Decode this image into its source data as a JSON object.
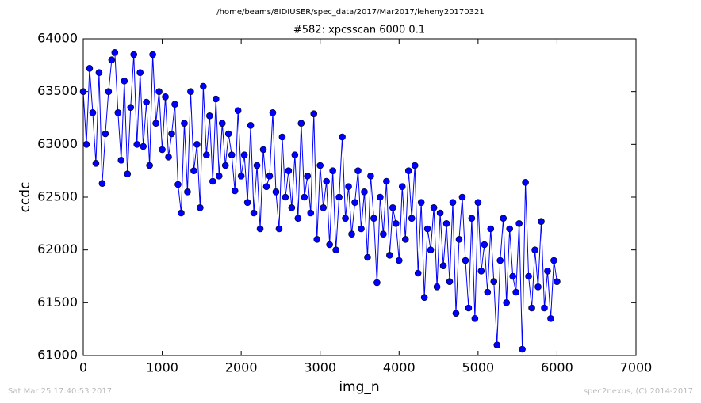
{
  "header": {
    "path": "/home/beams/8IDIUSER/spec_data/2017/Mar2017/leheny20170321"
  },
  "footer": {
    "timestamp": "Sat Mar 25 17:40:53 2017",
    "credit": "spec2nexus, (C) 2014-2017"
  },
  "chart_data": {
    "type": "line",
    "title": "#582: xpcsscan 6000 0.1",
    "xlabel": "img_n",
    "ylabel": "ccdc",
    "color": "#0000ff",
    "marker_color": "#0000ff",
    "x": [
      0,
      40,
      80,
      120,
      160,
      200,
      240,
      280,
      320,
      360,
      400,
      440,
      480,
      520,
      560,
      600,
      640,
      680,
      720,
      760,
      800,
      840,
      880,
      920,
      960,
      1000,
      1040,
      1080,
      1120,
      1160,
      1200,
      1240,
      1280,
      1320,
      1360,
      1400,
      1440,
      1480,
      1520,
      1560,
      1600,
      1640,
      1680,
      1720,
      1760,
      1800,
      1840,
      1880,
      1920,
      1960,
      2000,
      2040,
      2080,
      2120,
      2160,
      2200,
      2240,
      2280,
      2320,
      2360,
      2400,
      2440,
      2480,
      2520,
      2560,
      2600,
      2640,
      2680,
      2720,
      2760,
      2800,
      2840,
      2880,
      2920,
      2960,
      3000,
      3040,
      3080,
      3120,
      3160,
      3200,
      3240,
      3280,
      3320,
      3360,
      3400,
      3440,
      3480,
      3520,
      3560,
      3600,
      3640,
      3680,
      3720,
      3760,
      3800,
      3840,
      3880,
      3920,
      3960,
      4000,
      4040,
      4080,
      4120,
      4160,
      4200,
      4240,
      4280,
      4320,
      4360,
      4400,
      4440,
      4480,
      4520,
      4560,
      4600,
      4640,
      4680,
      4720,
      4760,
      4800,
      4840,
      4880,
      4920,
      4960,
      5000,
      5040,
      5080,
      5120,
      5160,
      5200,
      5240,
      5280,
      5320,
      5360,
      5400,
      5440,
      5480,
      5520,
      5560,
      5600,
      5640,
      5680,
      5720,
      5760,
      5800,
      5840,
      5880,
      5920,
      5960,
      6000
    ],
    "values": [
      63500,
      63000,
      63720,
      63300,
      62820,
      63680,
      62630,
      63100,
      63500,
      63800,
      63870,
      63300,
      62850,
      63600,
      62720,
      63350,
      63850,
      63000,
      63680,
      62980,
      63400,
      62800,
      63850,
      63200,
      63500,
      62950,
      63450,
      62880,
      63100,
      63380,
      62620,
      62350,
      63200,
      62550,
      63500,
      62750,
      63000,
      62400,
      63550,
      62900,
      63270,
      62650,
      63430,
      62700,
      63200,
      62800,
      63100,
      62900,
      62560,
      63320,
      62700,
      62900,
      62450,
      63180,
      62350,
      62800,
      62200,
      62950,
      62600,
      62700,
      63300,
      62550,
      62200,
      63070,
      62500,
      62750,
      62400,
      62900,
      62300,
      63200,
      62500,
      62700,
      62350,
      63290,
      62100,
      62800,
      62400,
      62650,
      62050,
      62750,
      62000,
      62500,
      63070,
      62300,
      62600,
      62150,
      62450,
      62750,
      62200,
      62550,
      61930,
      62700,
      62300,
      61690,
      62500,
      62150,
      62650,
      61950,
      62400,
      62250,
      61900,
      62600,
      62100,
      62750,
      62300,
      62800,
      61780,
      62450,
      61550,
      62200,
      62000,
      62400,
      61650,
      62350,
      61850,
      62250,
      61700,
      62450,
      61400,
      62100,
      62500,
      61900,
      61450,
      62300,
      61350,
      62450,
      61800,
      62050,
      61600,
      62200,
      61700,
      61100,
      61900,
      62300,
      61500,
      62200,
      61750,
      61600,
      62250,
      61060,
      62640,
      61750,
      61450,
      62000,
      61650,
      62270,
      61450,
      61800,
      61350,
      61900,
      61700
    ],
    "xlim": [
      0,
      7000
    ],
    "xticks": [
      0,
      1000,
      2000,
      3000,
      4000,
      5000,
      6000,
      7000
    ],
    "ylim": [
      61000,
      64000
    ],
    "yticks": [
      61000,
      61500,
      62000,
      62500,
      63000,
      63500,
      64000
    ]
  }
}
